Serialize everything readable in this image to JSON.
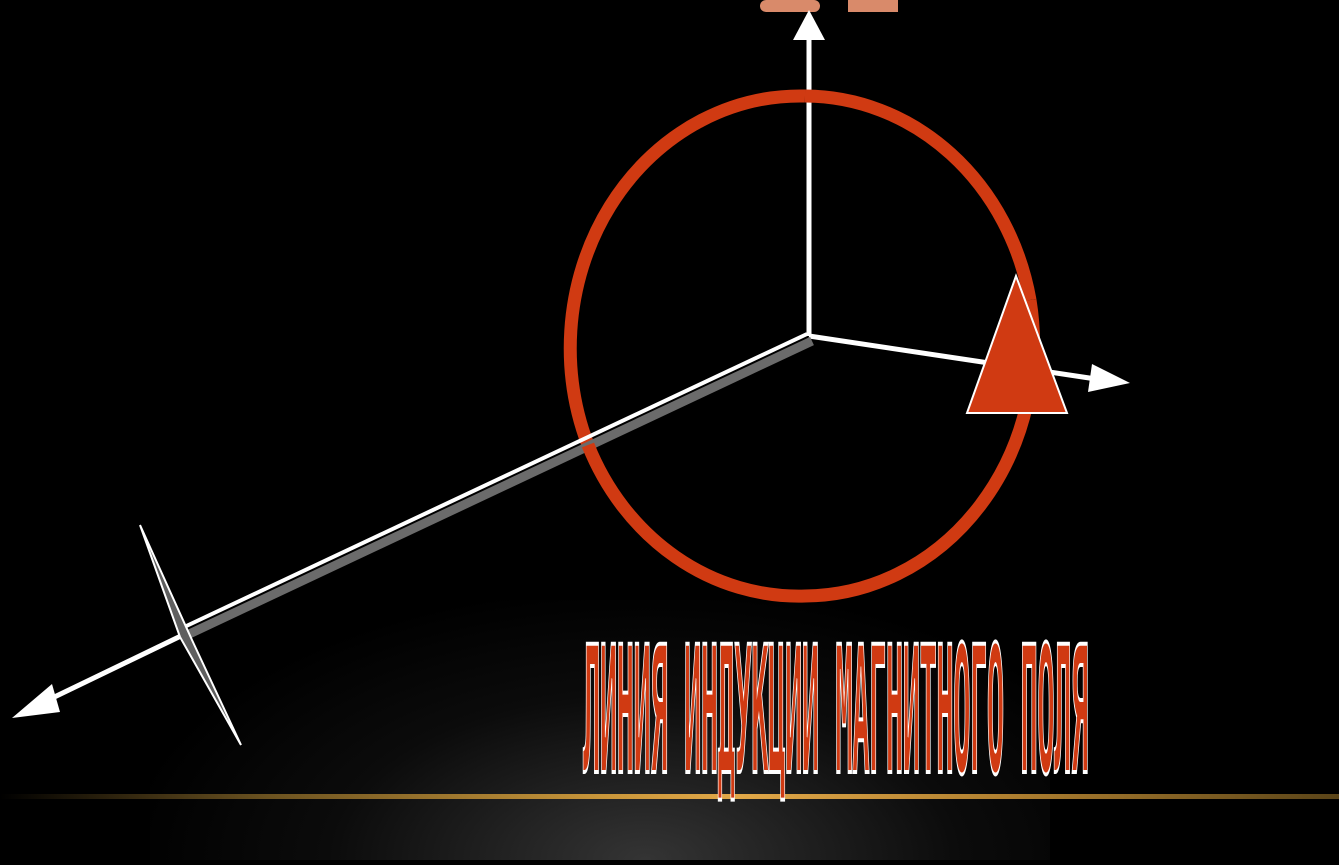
{
  "caption": "ЛИНИЯ ИНДУКЦИИ МАГНИТНОГО ПОЛЯ",
  "colors": {
    "background": "#000000",
    "loop": "#d03a12",
    "axes": "#ffffff",
    "conductor": "#6b6b6b",
    "floor_line": "#c9963a",
    "top_label": "#d98a6a"
  }
}
